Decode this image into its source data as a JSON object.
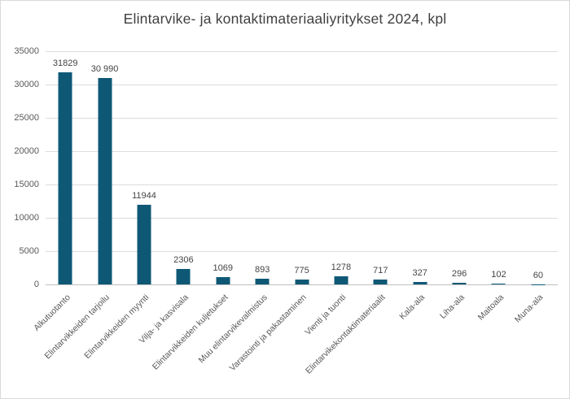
{
  "chart_data": {
    "type": "bar",
    "title": "Elintarvike- ja kontaktimateriaaliyritykset 2024, kpl",
    "categories": [
      "Alkutuotanto",
      "Elintarvikkeiden tarjoilu",
      "Elintarvikkeiden myynti",
      "Vilja- ja kasvisala",
      "Elintarvikkeiden kuljetukset",
      "Muu elintarvikevalmistus",
      "Varastointi ja pakastaminen",
      "Vienti ja tuonti",
      "Elintarvikekontaktimateriaalit",
      "Kala-ala",
      "Liha-ala",
      "Maitoala",
      "Muna-ala"
    ],
    "values": [
      31829,
      30990,
      11944,
      2306,
      1069,
      893,
      775,
      1278,
      717,
      327,
      296,
      102,
      60
    ],
    "value_labels": [
      "31829",
      "30 990",
      "11944",
      "2306",
      "1069",
      "893",
      "775",
      "1278",
      "717",
      "327",
      "296",
      "102",
      "60"
    ],
    "xlabel": "",
    "ylabel": "",
    "ylim": [
      0,
      35000
    ],
    "y_tick_interval": 5000,
    "y_tick_labels": [
      "0",
      "5000",
      "10000",
      "15000",
      "20000",
      "25000",
      "30000",
      "35000"
    ],
    "grid": true,
    "legend": "none",
    "bar_color": "#0e5876",
    "gridline_color": "#dcdcdc",
    "axis_text_color": "#595959",
    "value_label_color": "#444444",
    "title_color": "#404040"
  }
}
